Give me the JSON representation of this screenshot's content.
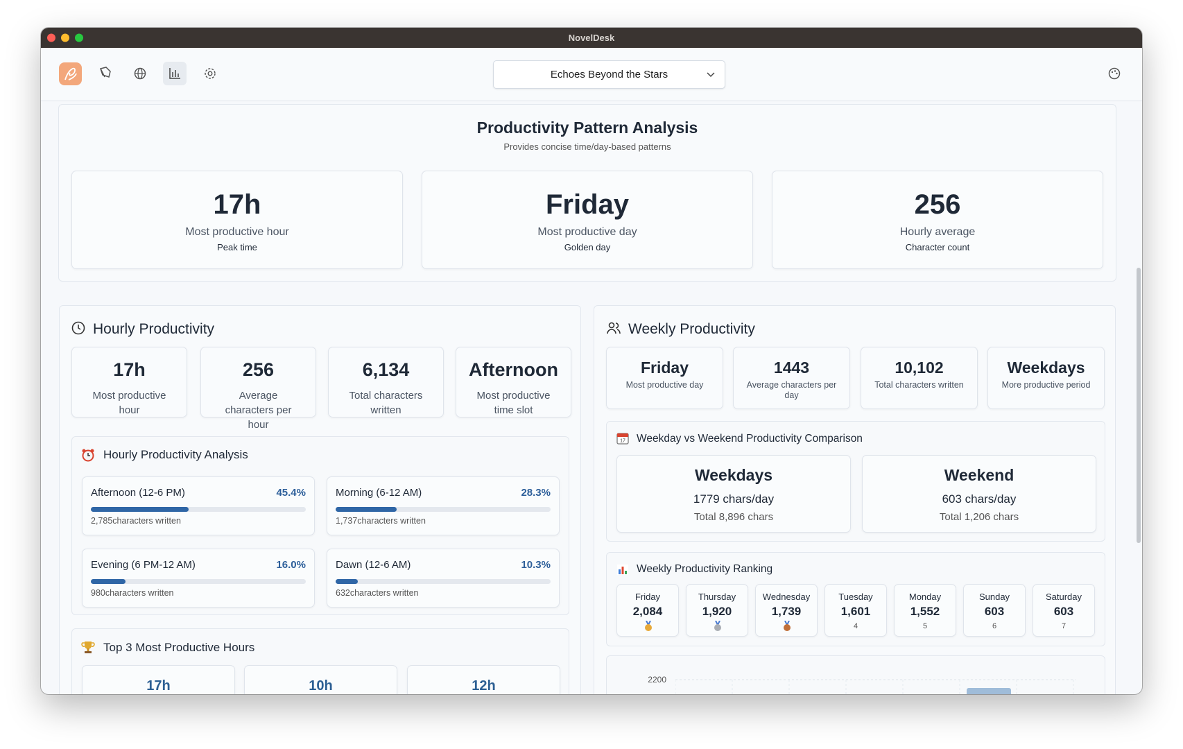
{
  "window": {
    "title": "NovelDesk"
  },
  "toolbar": {
    "project": "Echoes Beyond the Stars"
  },
  "summary": {
    "title": "Productivity Pattern Analysis",
    "subtitle": "Provides concise time/day-based patterns",
    "cards": [
      {
        "value": "17h",
        "label": "Most productive hour",
        "note": "Peak time"
      },
      {
        "value": "Friday",
        "label": "Most productive day",
        "note": "Golden day"
      },
      {
        "value": "256",
        "label": "Hourly average",
        "note": "Character count"
      }
    ]
  },
  "hourly": {
    "title": "Hourly Productivity",
    "stats": [
      {
        "value": "17h",
        "label": "Most productive hour"
      },
      {
        "value": "256",
        "label": "Average characters per hour"
      },
      {
        "value": "6,134",
        "label": "Total characters written"
      },
      {
        "value": "Afternoon",
        "label": "Most productive time slot"
      }
    ],
    "analysis": {
      "title": "Hourly Productivity Analysis",
      "slots": [
        {
          "name": "Afternoon (12-6 PM)",
          "percent": 45.4,
          "value_label": "45.4%",
          "detail": "2,785characters written"
        },
        {
          "name": "Morning (6-12 AM)",
          "percent": 28.3,
          "value_label": "28.3%",
          "detail": "1,737characters written"
        },
        {
          "name": "Evening (6 PM-12 AM)",
          "percent": 16.0,
          "value_label": "16.0%",
          "detail": "980characters written"
        },
        {
          "name": "Dawn (12-6 AM)",
          "percent": 10.3,
          "value_label": "10.3%",
          "detail": "632characters written"
        }
      ]
    },
    "top_hours": {
      "title": "Top 3 Most Productive Hours",
      "hours": [
        "17h",
        "10h",
        "12h"
      ]
    }
  },
  "weekly": {
    "title": "Weekly Productivity",
    "stats": [
      {
        "value": "Friday",
        "label": "Most productive day"
      },
      {
        "value": "1443",
        "label": "Average characters per day"
      },
      {
        "value": "10,102",
        "label": "Total characters written"
      },
      {
        "value": "Weekdays",
        "label": "More productive period"
      }
    ],
    "comparison": {
      "title": "Weekday vs Weekend Productivity Comparison",
      "items": [
        {
          "name": "Weekdays",
          "rate": "1779 chars/day",
          "total": "Total 8,896 chars"
        },
        {
          "name": "Weekend",
          "rate": "603 chars/day",
          "total": "Total 1,206 chars"
        }
      ]
    },
    "ranking": {
      "title": "Weekly Productivity Ranking",
      "days": [
        {
          "day": "Friday",
          "count": "2,084",
          "rank": 1
        },
        {
          "day": "Thursday",
          "count": "1,920",
          "rank": 2
        },
        {
          "day": "Wednesday",
          "count": "1,739",
          "rank": 3
        },
        {
          "day": "Tuesday",
          "count": "1,601",
          "rank": 4
        },
        {
          "day": "Monday",
          "count": "1,552",
          "rank": 5
        },
        {
          "day": "Sunday",
          "count": "603",
          "rank": 6
        },
        {
          "day": "Saturday",
          "count": "603",
          "rank": 7
        }
      ]
    },
    "chart": {
      "yticks": [
        2200
      ]
    }
  }
}
